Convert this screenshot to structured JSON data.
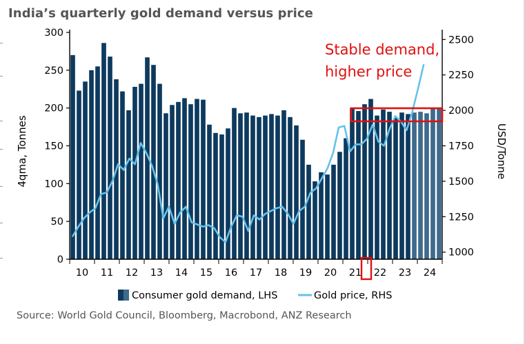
{
  "title": "India’s quarterly gold demand versus price",
  "source": "Source: World Gold Council, Bloomberg, Macrobond, ANZ Research",
  "colors": {
    "bar": "#0d3a5e",
    "bar_forecast": "#3e6a8c",
    "line": "#66c2ea",
    "highlight": "#e01010",
    "axis": "#000000",
    "text": "#000000"
  },
  "chart_data": {
    "type": "bar",
    "title": "India’s quarterly gold demand versus price",
    "ylabel": "4qma, Tonnes",
    "y2label": "USD/Tonne",
    "ylim": [
      0,
      300
    ],
    "y2lim": [
      950,
      2550
    ],
    "yticks": [
      0,
      50,
      100,
      150,
      200,
      250,
      300
    ],
    "y2ticks": [
      1000,
      1250,
      1500,
      1750,
      2000,
      2250,
      2500
    ],
    "year_labels": [
      "10",
      "11",
      "12",
      "13",
      "14",
      "15",
      "16",
      "17",
      "18",
      "19",
      "20",
      "21",
      "22",
      "23",
      "24"
    ],
    "grid": false,
    "legend_position": "bottom",
    "legend": [
      {
        "label": "Consumer gold demand, LHS",
        "kind": "bar"
      },
      {
        "label": "Gold price, RHS",
        "kind": "line"
      }
    ],
    "annotation": {
      "text_lines": [
        "Stable demand,",
        "higher price"
      ]
    },
    "series": [
      {
        "name": "Consumer gold demand, LHS",
        "axis": "left",
        "values": [
          270,
          223,
          235,
          250,
          255,
          286,
          268,
          238,
          222,
          197,
          228,
          232,
          267,
          257,
          232,
          193,
          204,
          208,
          213,
          205,
          212,
          211,
          178,
          167,
          165,
          173,
          200,
          193,
          194,
          190,
          188,
          190,
          192,
          190,
          197,
          188,
          177,
          158,
          125,
          103,
          115,
          112,
          125,
          142,
          160,
          200,
          196,
          205,
          212,
          190,
          198,
          195,
          187,
          194,
          192,
          194,
          195,
          193,
          199,
          200
        ],
        "forecast_from_index": 55
      },
      {
        "name": "Gold price, RHS",
        "axis": "right",
        "values": [
          1113,
          1180,
          1240,
          1280,
          1310,
          1410,
          1420,
          1500,
          1620,
          1580,
          1660,
          1620,
          1770,
          1700,
          1610,
          1480,
          1240,
          1320,
          1200,
          1280,
          1320,
          1210,
          1195,
          1180,
          1190,
          1170,
          1105,
          1070,
          1180,
          1260,
          1250,
          1150,
          1260,
          1230,
          1270,
          1290,
          1310,
          1320,
          1270,
          1200,
          1290,
          1320,
          1420,
          1450,
          1520,
          1590,
          1700,
          1880,
          1890,
          1710,
          1760,
          1760,
          1800,
          1900,
          1780,
          1750,
          1870,
          1960,
          1920,
          1860,
          1990,
          2150,
          2320
        ]
      }
    ]
  }
}
